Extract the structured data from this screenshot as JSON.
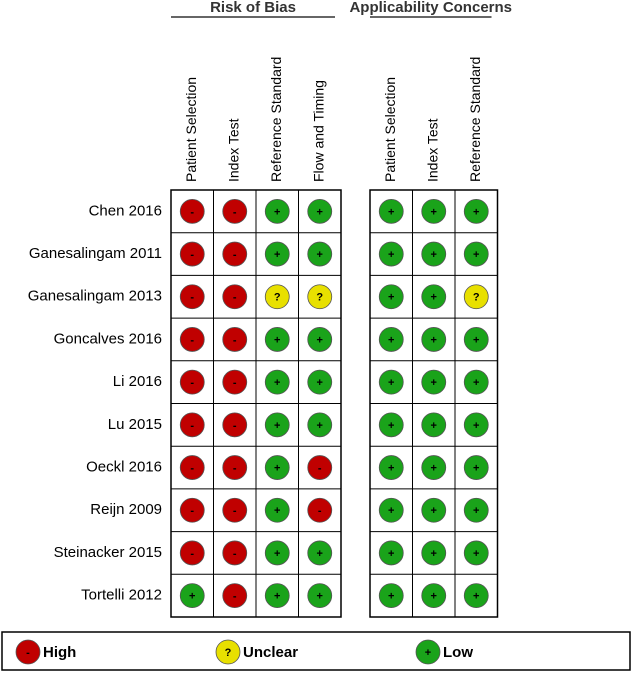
{
  "groups": [
    {
      "title": "Risk of Bias",
      "columns": [
        "Patient Selection",
        "Index Test",
        "Reference Standard",
        "Flow and Timing"
      ]
    },
    {
      "title": "Applicability Concerns",
      "columns": [
        "Patient Selection",
        "Index Test",
        "Reference Standard"
      ]
    }
  ],
  "studies": [
    {
      "name": "Chen 2016",
      "ratings": [
        [
          "-",
          "-",
          "+",
          "+"
        ],
        [
          "+",
          "+",
          "+"
        ]
      ]
    },
    {
      "name": "Ganesalingam 2011",
      "ratings": [
        [
          "-",
          "-",
          "+",
          "+"
        ],
        [
          "+",
          "+",
          "+"
        ]
      ]
    },
    {
      "name": "Ganesalingam 2013",
      "ratings": [
        [
          "-",
          "-",
          "?",
          "?"
        ],
        [
          "+",
          "+",
          "?"
        ]
      ]
    },
    {
      "name": "Goncalves 2016",
      "ratings": [
        [
          "-",
          "-",
          "+",
          "+"
        ],
        [
          "+",
          "+",
          "+"
        ]
      ]
    },
    {
      "name": "Li 2016",
      "ratings": [
        [
          "-",
          "-",
          "+",
          "+"
        ],
        [
          "+",
          "+",
          "+"
        ]
      ]
    },
    {
      "name": "Lu 2015",
      "ratings": [
        [
          "-",
          "-",
          "+",
          "+"
        ],
        [
          "+",
          "+",
          "+"
        ]
      ]
    },
    {
      "name": "Oeckl 2016",
      "ratings": [
        [
          "-",
          "-",
          "+",
          "-"
        ],
        [
          "+",
          "+",
          "+"
        ]
      ]
    },
    {
      "name": "Reijn 2009",
      "ratings": [
        [
          "-",
          "-",
          "+",
          "-"
        ],
        [
          "+",
          "+",
          "+"
        ]
      ]
    },
    {
      "name": "Steinacker 2015",
      "ratings": [
        [
          "-",
          "-",
          "+",
          "+"
        ],
        [
          "+",
          "+",
          "+"
        ]
      ]
    },
    {
      "name": "Tortelli 2012",
      "ratings": [
        [
          "+",
          "-",
          "+",
          "+"
        ],
        [
          "+",
          "+",
          "+"
        ]
      ]
    }
  ],
  "legend": [
    {
      "symbol": "-",
      "label": "High",
      "color": "#c00000"
    },
    {
      "symbol": "?",
      "label": "Unclear",
      "color": "#e8e000"
    },
    {
      "symbol": "+",
      "label": "Low",
      "color": "#1aa31a"
    }
  ]
}
